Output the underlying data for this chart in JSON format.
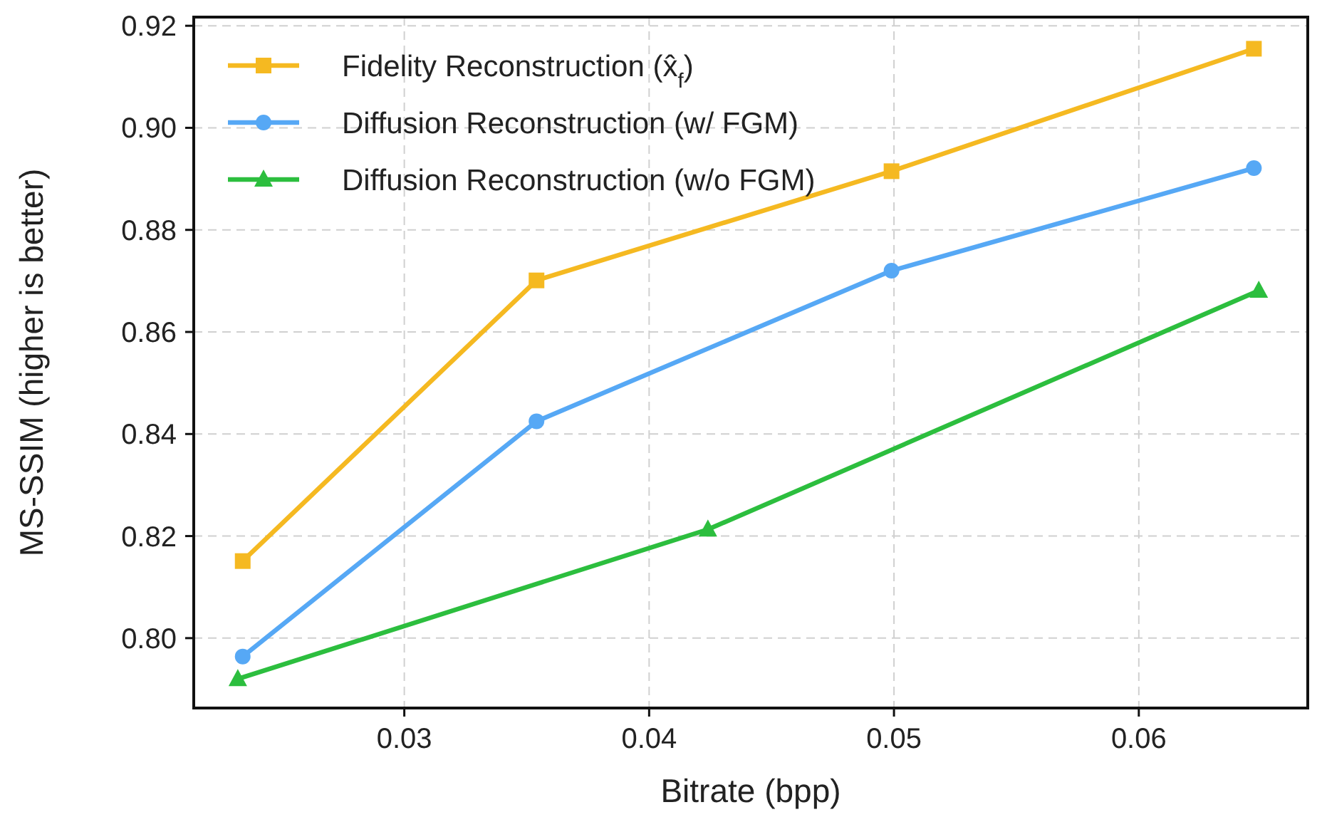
{
  "chart_data": {
    "type": "line",
    "xlabel": "Bitrate (bpp)",
    "ylabel": "MS-SSIM (higher is better)",
    "xlim": [
      0.0214,
      0.0669
    ],
    "ylim": [
      0.7863,
      0.9217
    ],
    "xticks": [
      {
        "value": 0.03,
        "label": "0.03"
      },
      {
        "value": 0.04,
        "label": "0.04"
      },
      {
        "value": 0.05,
        "label": "0.05"
      },
      {
        "value": 0.06,
        "label": "0.06"
      }
    ],
    "yticks": [
      {
        "value": 0.8,
        "label": "0.80"
      },
      {
        "value": 0.82,
        "label": "0.82"
      },
      {
        "value": 0.84,
        "label": "0.84"
      },
      {
        "value": 0.86,
        "label": "0.86"
      },
      {
        "value": 0.88,
        "label": "0.88"
      },
      {
        "value": 0.9,
        "label": "0.90"
      },
      {
        "value": 0.92,
        "label": "0.92"
      }
    ],
    "grid": true,
    "legend": "top left",
    "line_style": "solid",
    "series": [
      {
        "name": "Fidelity Reconstruction (x̂$_{f}$)",
        "color": "#f5b921",
        "marker": "square",
        "x": [
          0.0234,
          0.0354,
          0.0499,
          0.0647
        ],
        "values": [
          0.8151,
          0.8701,
          0.8915,
          0.9155
        ]
      },
      {
        "name": "Diffusion Reconstruction (w/ FGM)",
        "color": "#56a8f5",
        "marker": "circle",
        "x": [
          0.0234,
          0.0354,
          0.0499,
          0.0647
        ],
        "values": [
          0.7964,
          0.8425,
          0.872,
          0.8921
        ]
      },
      {
        "name": "Diffusion Reconstruction (w/o FGM)",
        "color": "#2cbe3e",
        "marker": "triangle",
        "x": [
          0.0232,
          0.0424,
          0.0649
        ],
        "values": [
          0.792,
          0.8213,
          0.8681
        ]
      }
    ]
  }
}
